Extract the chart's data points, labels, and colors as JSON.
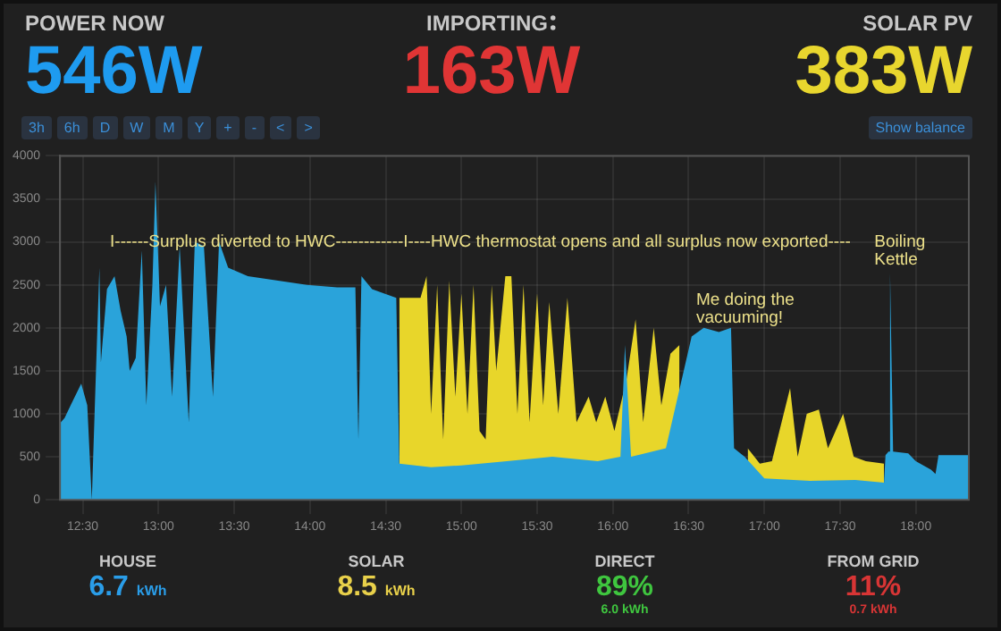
{
  "chart_data": [
    {
      "type": "other",
      "categories": [
        "POWER NOW",
        "IMPORTING",
        "SOLAR PV"
      ],
      "value_labels": [
        "546W",
        "163W",
        "383W"
      ],
      "colors": [
        "#1e9bf0",
        "#e03535",
        "#e8d62e"
      ],
      "annotations": [
        "3h",
        "6h",
        "D",
        "W",
        "M",
        "Y",
        "+",
        "-",
        "<",
        ">",
        "Show balance"
      ]
    },
    {
      "type": "area",
      "xlim": [
        12.35,
        18.35
      ],
      "ylim": [
        0,
        4000
      ],
      "xticks": [
        {
          "value": 12.5,
          "label": "12:30"
        },
        {
          "value": 13,
          "label": "13:00"
        },
        {
          "value": 13.5,
          "label": "13:30"
        },
        {
          "value": 14,
          "label": "14:00"
        },
        {
          "value": 14.5,
          "label": "14:30"
        },
        {
          "value": 15,
          "label": "15:00"
        },
        {
          "value": 15.5,
          "label": "15:30"
        },
        {
          "value": 16,
          "label": "16:00"
        },
        {
          "value": 16.5,
          "label": "16:30"
        },
        {
          "value": 17,
          "label": "17:00"
        },
        {
          "value": 17.5,
          "label": "17:30"
        },
        {
          "value": 18,
          "label": "18:00"
        }
      ],
      "yticks": [
        0,
        500,
        1000,
        1500,
        2000,
        2500,
        3000,
        3500,
        4000
      ],
      "grid": true,
      "marker": "none",
      "series": [
        {
          "color": "#2aa3da",
          "x": [
            12.35,
            12.38,
            12.42,
            12.49,
            12.53,
            12.56,
            12.58,
            12.61,
            12.62,
            12.66,
            12.71,
            12.75,
            12.79,
            12.81,
            12.85,
            12.89,
            12.92,
            12.96,
            12.98,
            13.01,
            13.05,
            13.09,
            13.14,
            13.2,
            13.24,
            13.3,
            13.36,
            13.4,
            13.46,
            13.59,
            13.79,
            13.98,
            14.18,
            14.3,
            14.32,
            14.34,
            14.41,
            14.57,
            14.59,
            14.8,
            15.0,
            15.3,
            15.6,
            15.9,
            16.05,
            16.08,
            16.12,
            16.35,
            16.52,
            16.6,
            16.7,
            16.78,
            16.8,
            16.87,
            17.0,
            17.3,
            17.6,
            17.79,
            17.8,
            17.82,
            17.83,
            17.85,
            17.95,
            18.0,
            18.1,
            18.13,
            18.15,
            18.35
          ],
          "values": [
            890,
            950,
            1100,
            1350,
            1100,
            0,
            1100,
            2700,
            1600,
            2450,
            2600,
            2200,
            1900,
            1500,
            1650,
            2900,
            1100,
            2500,
            3700,
            2250,
            2500,
            1200,
            2950,
            900,
            3000,
            2950,
            1200,
            3000,
            2700,
            2600,
            2550,
            2500,
            2470,
            2470,
            700,
            2600,
            2450,
            2350,
            420,
            380,
            400,
            450,
            500,
            450,
            500,
            1800,
            500,
            600,
            1900,
            2000,
            1950,
            2000,
            600,
            500,
            250,
            220,
            230,
            200,
            520,
            560,
            2640,
            560,
            540,
            450,
            350,
            300,
            520,
            520
          ]
        },
        {
          "color": "#e8d62a",
          "x": [
            14.59,
            14.73,
            14.77,
            14.8,
            14.84,
            14.88,
            14.92,
            14.96,
            15.0,
            15.04,
            15.08,
            15.12,
            15.16,
            15.2,
            15.23,
            15.29,
            15.33,
            15.37,
            15.41,
            15.45,
            15.5,
            15.54,
            15.58,
            15.64,
            15.7,
            15.76,
            15.84,
            15.89,
            15.95,
            16.01,
            16.09,
            16.15,
            16.2,
            16.27,
            16.32,
            16.38,
            16.44,
            16.5,
            16.89,
            16.97,
            17.05,
            17.17,
            17.22,
            17.28,
            17.36,
            17.42,
            17.52,
            17.59,
            17.67,
            17.79
          ],
          "values": [
            2350,
            2350,
            2600,
            1000,
            2500,
            700,
            2550,
            1200,
            2400,
            1000,
            2500,
            800,
            700,
            2500,
            1500,
            2600,
            2600,
            1000,
            2500,
            900,
            2400,
            1100,
            2300,
            1000,
            2350,
            900,
            1200,
            900,
            1200,
            800,
            1400,
            2100,
            900,
            2000,
            1100,
            1700,
            1800,
            null,
            600,
            420,
            450,
            1300,
            500,
            1000,
            1050,
            600,
            1000,
            500,
            450,
            420
          ]
        }
      ],
      "annotations": [
        "I------Surplus diverted to HWC------------I----HWC thermostat opens and all surplus now exported----",
        "Me doing the\nvacuuming!",
        "Boiling\nKettle"
      ]
    },
    {
      "type": "other",
      "categories": [
        "HOUSE",
        "SOLAR",
        "DIRECT",
        "FROM GRID"
      ],
      "value_labels": [
        "6.7 kWh",
        "8.5 kWh",
        "89%",
        "11%"
      ],
      "colors": [
        "#2a9de8",
        "#e8d04a",
        "#3fc63f",
        "#d83535"
      ],
      "annotations": [
        {
          "text": "6.0 kWh",
          "x": "DIRECT"
        },
        {
          "text": "0.7 kWh",
          "x": "FROM GRID"
        }
      ]
    }
  ]
}
